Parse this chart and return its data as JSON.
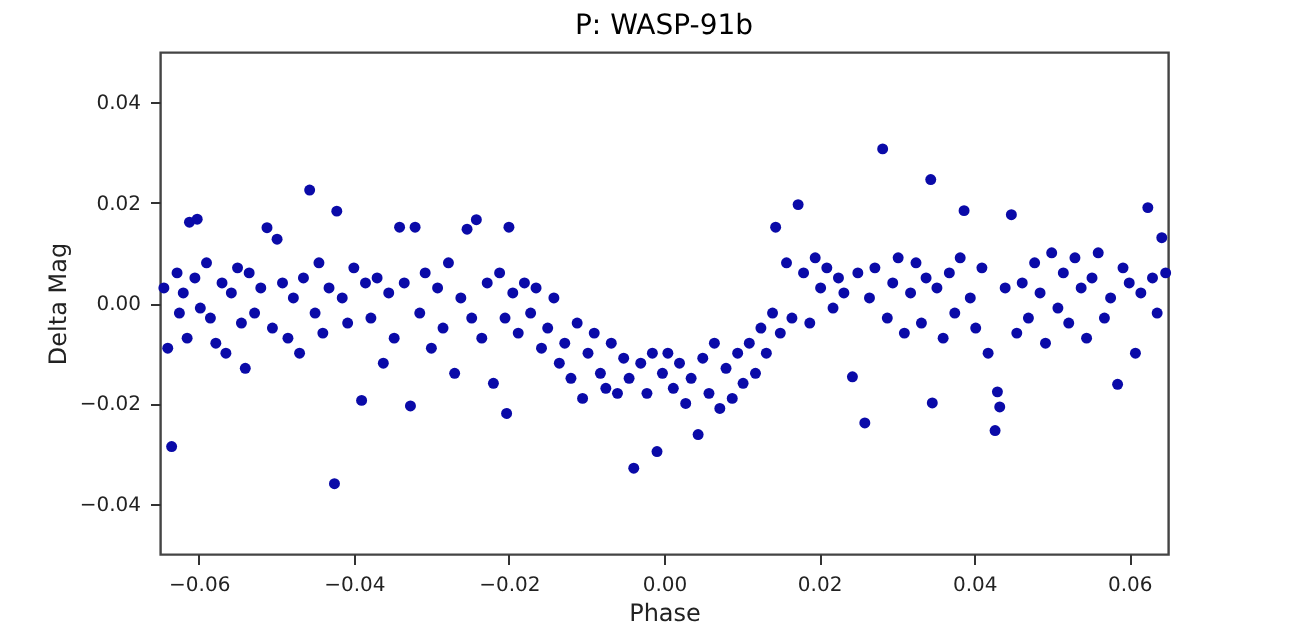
{
  "chart_data": {
    "type": "scatter",
    "title": "P: WASP-91b",
    "xlabel": "Phase",
    "ylabel": "Delta Mag",
    "marker": "circle",
    "grid": false,
    "xlim": [
      -0.065,
      0.065
    ],
    "ylim": [
      -0.05,
      0.05
    ],
    "xticks": [
      {
        "value": -0.06,
        "label": "−0.06"
      },
      {
        "value": -0.04,
        "label": "−0.04"
      },
      {
        "value": -0.02,
        "label": "−0.02"
      },
      {
        "value": 0,
        "label": "0.00"
      },
      {
        "value": 0.02,
        "label": "0.02"
      },
      {
        "value": 0.04,
        "label": "0.04"
      },
      {
        "value": 0.06,
        "label": "0.06"
      }
    ],
    "yticks": [
      {
        "value": -0.04,
        "label": "−0.04"
      },
      {
        "value": -0.02,
        "label": "−0.02"
      },
      {
        "value": 0,
        "label": "0.00"
      },
      {
        "value": 0.02,
        "label": "0.02"
      },
      {
        "value": 0.04,
        "label": "0.04"
      }
    ],
    "series": [
      {
        "color": "#0a0aa8",
        "x": [
          -0.0645,
          -0.064,
          -0.0635,
          -0.0628,
          -0.0625,
          -0.062,
          -0.0615,
          -0.0612,
          -0.0605,
          -0.0602,
          -0.0598,
          -0.059,
          -0.0585,
          -0.0578,
          -0.057,
          -0.0565,
          -0.0558,
          -0.055,
          -0.0545,
          -0.054,
          -0.0535,
          -0.0528,
          -0.052,
          -0.0512,
          -0.0505,
          -0.0499,
          -0.0492,
          -0.0485,
          -0.0478,
          -0.047,
          -0.0465,
          -0.0457,
          -0.045,
          -0.0445,
          -0.044,
          -0.0432,
          -0.0425,
          -0.0422,
          -0.0415,
          -0.0408,
          -0.04,
          -0.039,
          -0.0385,
          -0.0378,
          -0.037,
          -0.0362,
          -0.0355,
          -0.0348,
          -0.0341,
          -0.0335,
          -0.0327,
          -0.0321,
          -0.0315,
          -0.0308,
          -0.03,
          -0.0292,
          -0.0285,
          -0.0278,
          -0.027,
          -0.0262,
          -0.0254,
          -0.0248,
          -0.0242,
          -0.0235,
          -0.0228,
          -0.022,
          -0.0212,
          -0.0205,
          -0.0203,
          -0.02,
          -0.0195,
          -0.0188,
          -0.018,
          -0.0172,
          -0.0165,
          -0.0158,
          -0.015,
          -0.0142,
          -0.0135,
          -0.0128,
          -0.012,
          -0.0112,
          -0.0105,
          -0.0098,
          -0.009,
          -0.0082,
          -0.0075,
          -0.0068,
          -0.006,
          -0.0052,
          -0.0045,
          -0.0039,
          -0.003,
          -0.0022,
          -0.0015,
          -0.0009,
          -0.0002,
          0.0005,
          0.0012,
          0.002,
          0.0028,
          0.0035,
          0.0044,
          0.005,
          0.0058,
          0.0065,
          0.0072,
          0.008,
          0.0088,
          0.0095,
          0.0102,
          0.011,
          0.0118,
          0.0125,
          0.0132,
          0.014,
          0.0144,
          0.015,
          0.0158,
          0.0165,
          0.0173,
          0.018,
          0.0188,
          0.0195,
          0.0202,
          0.021,
          0.0218,
          0.0225,
          0.0232,
          0.0243,
          0.025,
          0.0259,
          0.0265,
          0.0272,
          0.0282,
          0.0288,
          0.0295,
          0.0302,
          0.031,
          0.0318,
          0.0325,
          0.0332,
          0.0338,
          0.0344,
          0.0346,
          0.0352,
          0.036,
          0.0368,
          0.0375,
          0.0382,
          0.0387,
          0.0395,
          0.0402,
          0.041,
          0.0418,
          0.0427,
          0.043,
          0.0433,
          0.044,
          0.0448,
          0.0455,
          0.0462,
          0.047,
          0.0478,
          0.0485,
          0.0492,
          0.05,
          0.0508,
          0.0515,
          0.0522,
          0.053,
          0.0538,
          0.0545,
          0.0552,
          0.056,
          0.0568,
          0.0576,
          0.0585,
          0.0592,
          0.06,
          0.0608,
          0.0615,
          0.0624,
          0.063,
          0.0636,
          0.0642,
          0.0647
        ],
        "values": [
          0.003,
          -0.009,
          -0.0286,
          0.006,
          -0.002,
          0.002,
          -0.007,
          0.0161,
          0.005,
          0.0167,
          -0.001,
          0.008,
          -0.003,
          -0.008,
          0.004,
          -0.01,
          0.002,
          0.007,
          -0.004,
          -0.013,
          0.006,
          -0.002,
          0.003,
          0.015,
          -0.005,
          0.0127,
          0.004,
          -0.007,
          0.001,
          -0.01,
          0.005,
          0.0225,
          -0.002,
          0.008,
          -0.006,
          0.003,
          -0.036,
          0.0183,
          0.001,
          -0.004,
          0.007,
          -0.0194,
          0.004,
          -0.003,
          0.005,
          -0.012,
          0.002,
          -0.007,
          0.0151,
          0.004,
          -0.0205,
          0.0151,
          -0.002,
          0.006,
          -0.009,
          0.003,
          -0.005,
          0.008,
          -0.014,
          0.001,
          0.0147,
          -0.003,
          0.0166,
          -0.007,
          0.004,
          -0.016,
          0.006,
          -0.003,
          -0.022,
          0.0151,
          0.002,
          -0.006,
          0.004,
          -0.002,
          0.003,
          -0.009,
          -0.005,
          0.001,
          -0.012,
          -0.008,
          -0.015,
          -0.004,
          -0.019,
          -0.01,
          -0.006,
          -0.014,
          -0.017,
          -0.008,
          -0.018,
          -0.011,
          -0.015,
          -0.0329,
          -0.012,
          -0.018,
          -0.01,
          -0.0296,
          -0.014,
          -0.01,
          -0.017,
          -0.012,
          -0.02,
          -0.015,
          -0.0262,
          -0.011,
          -0.018,
          -0.008,
          -0.021,
          -0.013,
          -0.019,
          -0.01,
          -0.016,
          -0.008,
          -0.014,
          -0.005,
          -0.01,
          -0.002,
          0.0151,
          -0.006,
          0.008,
          -0.003,
          0.0196,
          0.006,
          -0.004,
          0.009,
          0.003,
          0.007,
          -0.001,
          0.005,
          0.002,
          -0.0147,
          0.006,
          -0.0239,
          0.001,
          0.007,
          0.0307,
          -0.003,
          0.004,
          0.009,
          -0.006,
          0.002,
          0.008,
          -0.004,
          0.005,
          0.0246,
          -0.0199,
          0.003,
          -0.007,
          0.006,
          -0.002,
          0.009,
          0.0184,
          0.001,
          -0.005,
          0.007,
          -0.01,
          -0.0254,
          -0.0177,
          -0.0207,
          0.003,
          0.0176,
          -0.006,
          0.004,
          -0.003,
          0.008,
          0.002,
          -0.008,
          0.01,
          -0.001,
          0.006,
          -0.004,
          0.009,
          0.003,
          -0.007,
          0.005,
          0.01,
          -0.003,
          0.001,
          -0.0162,
          0.007,
          0.004,
          -0.01,
          0.002,
          0.019,
          0.005,
          -0.002,
          0.013,
          0.006
        ]
      }
    ]
  }
}
